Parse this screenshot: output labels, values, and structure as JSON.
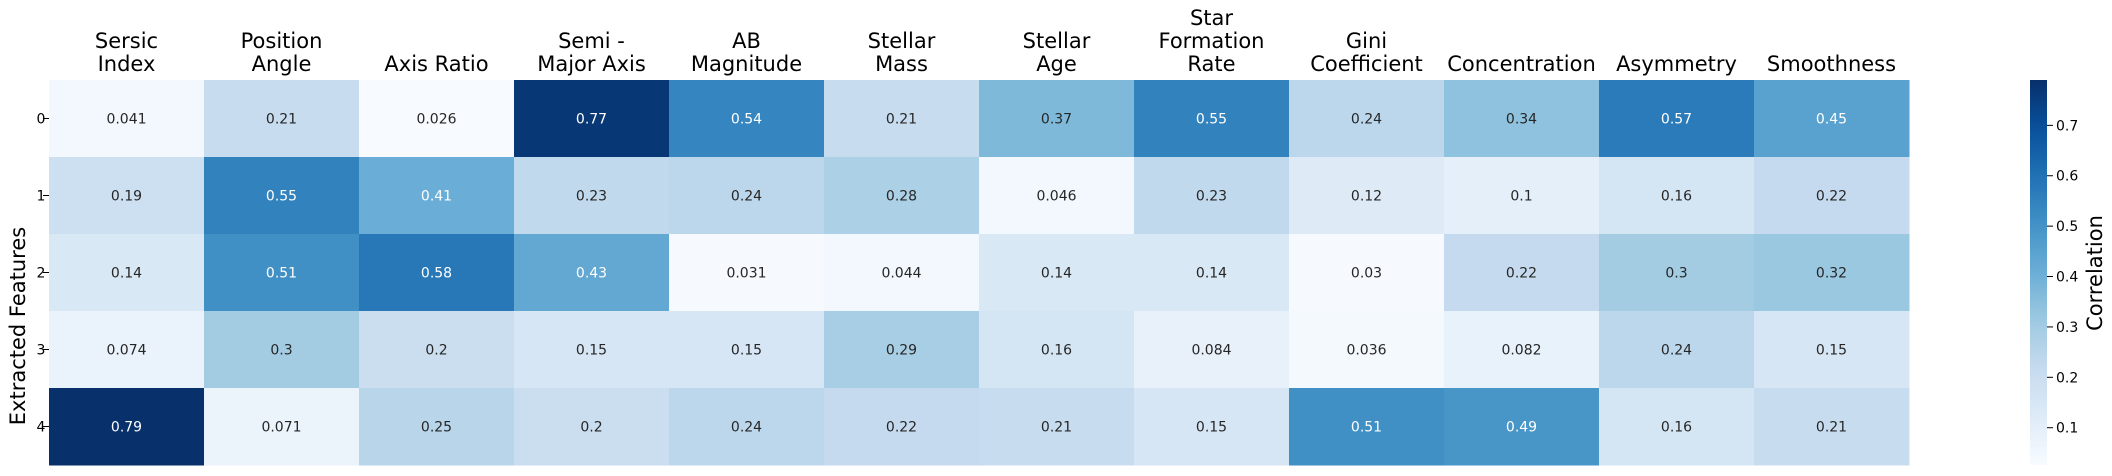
{
  "chart_data": {
    "type": "heatmap",
    "title": "",
    "xlabel": "",
    "ylabel": "Extracted Features",
    "colorbar_label": "Correlation",
    "colormap": "Blues",
    "colorbar_range": [
      0.026,
      0.79
    ],
    "colorbar_ticks": [
      "0.1",
      "0.2",
      "0.3",
      "0.4",
      "0.5",
      "0.6",
      "0.7"
    ],
    "columns": [
      [
        "Sersic",
        "Index"
      ],
      [
        "Position",
        "Angle"
      ],
      [
        "Axis Ratio"
      ],
      [
        "Semi -",
        "Major Axis"
      ],
      [
        "AB",
        "Magnitude"
      ],
      [
        "Stellar",
        "Mass"
      ],
      [
        "Stellar",
        "Age"
      ],
      [
        "Star",
        "Formation",
        "Rate"
      ],
      [
        "Gini",
        "Coefficient"
      ],
      [
        "Concentration"
      ],
      [
        "Asymmetry"
      ],
      [
        "Smoothness"
      ]
    ],
    "rows": [
      "0",
      "1",
      "2",
      "3",
      "4"
    ],
    "values": [
      [
        "0.041",
        "0.21",
        "0.026",
        "0.77",
        "0.54",
        "0.21",
        "0.37",
        "0.55",
        "0.24",
        "0.34",
        "0.57",
        "0.45"
      ],
      [
        "0.19",
        "0.55",
        "0.41",
        "0.23",
        "0.24",
        "0.28",
        "0.046",
        "0.23",
        "0.12",
        "0.1",
        "0.16",
        "0.22"
      ],
      [
        "0.14",
        "0.51",
        "0.58",
        "0.43",
        "0.031",
        "0.044",
        "0.14",
        "0.14",
        "0.03",
        "0.22",
        "0.3",
        "0.32"
      ],
      [
        "0.074",
        "0.3",
        "0.2",
        "0.15",
        "0.15",
        "0.29",
        "0.16",
        "0.084",
        "0.036",
        "0.082",
        "0.24",
        "0.15"
      ],
      [
        "0.79",
        "0.071",
        "0.25",
        "0.2",
        "0.24",
        "0.22",
        "0.21",
        "0.15",
        "0.51",
        "0.49",
        "0.16",
        "0.21"
      ]
    ]
  }
}
